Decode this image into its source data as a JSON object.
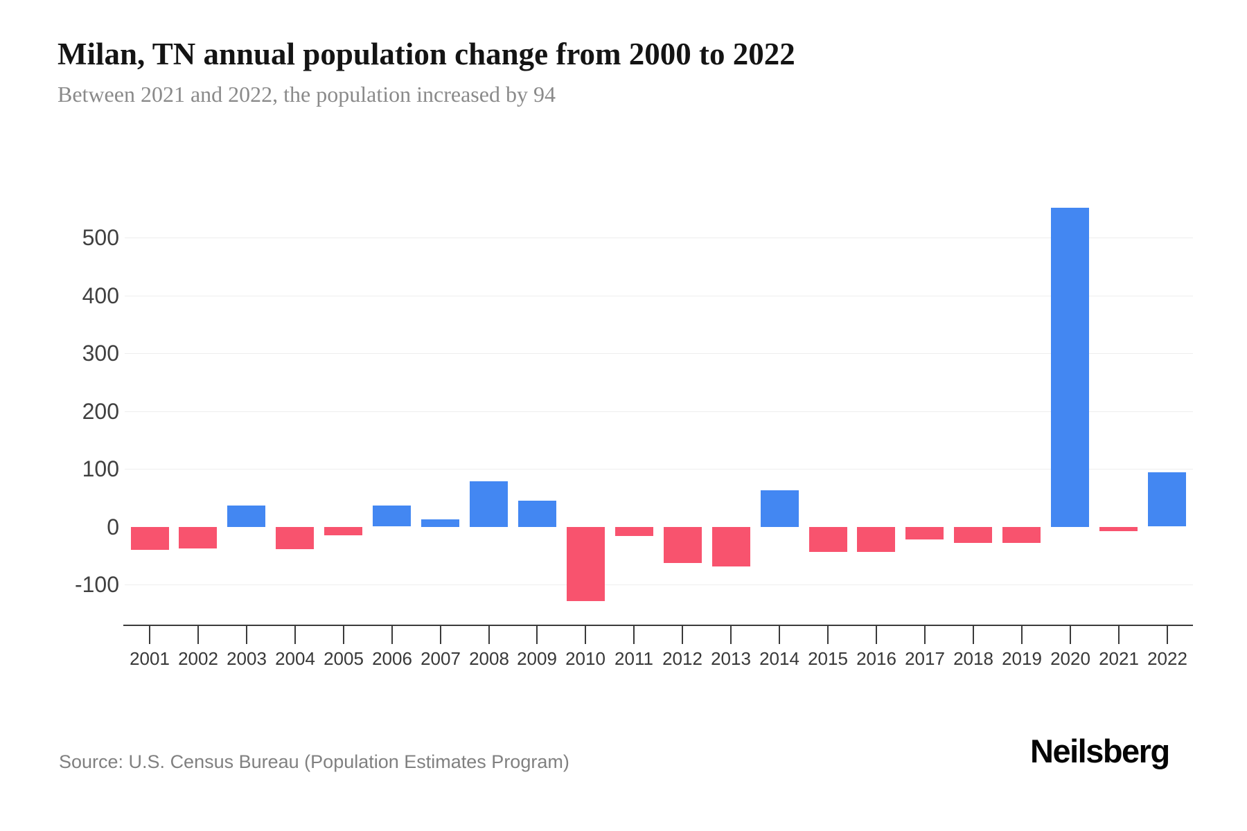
{
  "chart_data": {
    "type": "bar",
    "title": "Milan, TN annual population change from 2000 to 2022",
    "subtitle": "Between 2021 and 2022, the population increased by 94",
    "categories": [
      "2001",
      "2002",
      "2003",
      "2004",
      "2005",
      "2006",
      "2007",
      "2008",
      "2009",
      "2010",
      "2011",
      "2012",
      "2013",
      "2014",
      "2015",
      "2016",
      "2017",
      "2018",
      "2019",
      "2020",
      "2021",
      "2022"
    ],
    "values": [
      -40,
      -37,
      37,
      -38,
      -14,
      36,
      13,
      79,
      45,
      -128,
      -16,
      -62,
      -68,
      63,
      -43,
      -43,
      -21,
      -28,
      -27,
      552,
      -7,
      94
    ],
    "xlabel": "",
    "ylabel": "",
    "ylim": [
      -170,
      570
    ],
    "yticks": [
      500,
      400,
      300,
      200,
      100,
      0,
      -100
    ],
    "grid": true,
    "legend": "none",
    "colors": {
      "positive": "#4387f2",
      "negative": "#f8536e",
      "gridline": "#eeeeee",
      "axis": "#3a3a3a",
      "tick_label": "#404040"
    }
  },
  "footer": {
    "source": "Source: U.S. Census Bureau (Population Estimates Program)",
    "logo": "Neilsberg"
  }
}
